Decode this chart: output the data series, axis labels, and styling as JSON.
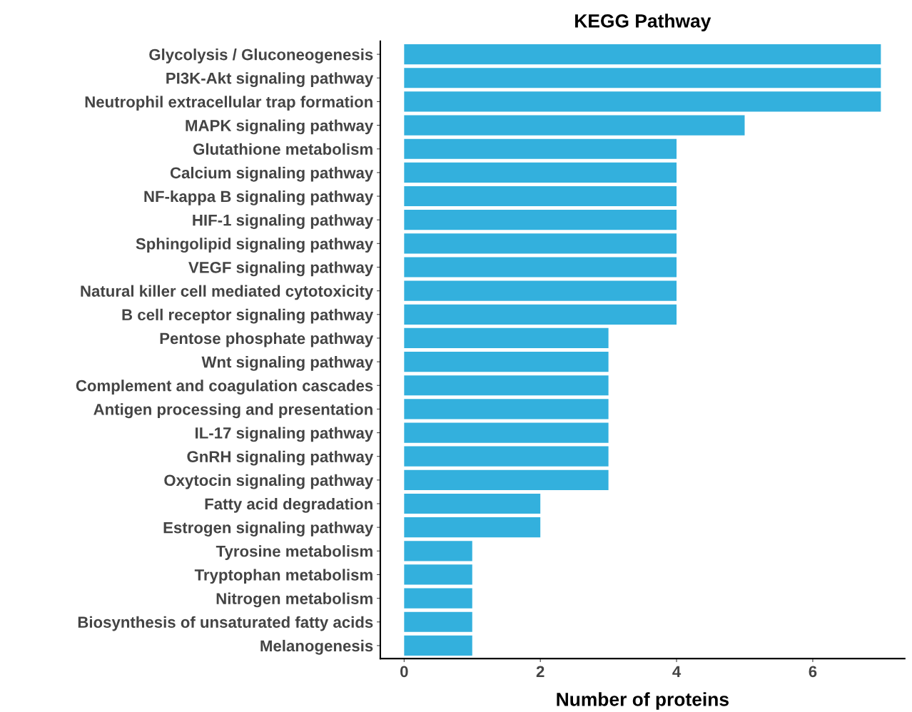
{
  "chart_data": {
    "type": "bar",
    "orientation": "horizontal",
    "title": "KEGG Pathway",
    "xlabel": "Number of proteins",
    "categories": [
      "Glycolysis / Gluconeogenesis",
      "PI3K-Akt signaling pathway",
      "Neutrophil extracellular trap formation",
      "MAPK signaling pathway",
      "Glutathione metabolism",
      "Calcium signaling pathway",
      "NF-kappa B signaling pathway",
      "HIF-1 signaling pathway",
      "Sphingolipid signaling pathway",
      "VEGF signaling pathway",
      "Natural killer cell mediated cytotoxicity",
      "B cell receptor signaling pathway",
      "Pentose phosphate pathway",
      "Wnt signaling pathway",
      "Complement and coagulation cascades",
      "Antigen processing and presentation",
      "IL-17 signaling pathway",
      "GnRH signaling pathway",
      "Oxytocin signaling pathway",
      "Fatty acid degradation",
      "Estrogen signaling pathway",
      "Tyrosine metabolism",
      "Tryptophan metabolism",
      "Nitrogen metabolism",
      "Biosynthesis of unsaturated fatty acids",
      "Melanogenesis"
    ],
    "values": [
      7,
      7,
      7,
      5,
      4,
      4,
      4,
      4,
      4,
      4,
      4,
      4,
      3,
      3,
      3,
      3,
      3,
      3,
      3,
      2,
      2,
      1,
      1,
      1,
      1,
      1
    ],
    "color": "#33b0dd",
    "xlim": [
      -0.35,
      7.35
    ],
    "xticks": [
      0,
      2,
      4,
      6
    ],
    "grid": false
  }
}
